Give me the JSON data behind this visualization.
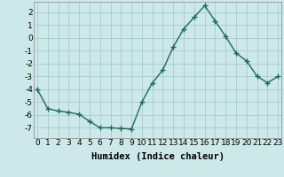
{
  "x": [
    0,
    1,
    2,
    3,
    4,
    5,
    6,
    7,
    8,
    9,
    10,
    11,
    12,
    13,
    14,
    15,
    16,
    17,
    18,
    19,
    20,
    21,
    22,
    23
  ],
  "y": [
    -4,
    -5.5,
    -5.7,
    -5.8,
    -5.95,
    -6.5,
    -7.0,
    -7.0,
    -7.05,
    -7.1,
    -5.0,
    -3.5,
    -2.5,
    -0.7,
    0.7,
    1.6,
    2.5,
    1.3,
    0.1,
    -1.2,
    -1.8,
    -3.0,
    -3.5,
    -3.0
  ],
  "line_color": "#1a6b5a",
  "bg_color": "#cce8e8",
  "grid_color": "#aacccc",
  "xlabel": "Humidex (Indice chaleur)",
  "ylim": [
    -7.8,
    2.8
  ],
  "xlim": [
    -0.3,
    23.3
  ],
  "yticks": [
    -7,
    -6,
    -5,
    -4,
    -3,
    -2,
    -1,
    0,
    1,
    2
  ],
  "xticks": [
    0,
    1,
    2,
    3,
    4,
    5,
    6,
    7,
    8,
    9,
    10,
    11,
    12,
    13,
    14,
    15,
    16,
    17,
    18,
    19,
    20,
    21,
    22,
    23
  ],
  "tick_fontsize": 6.5,
  "xlabel_fontsize": 7.5,
  "marker": "+",
  "marker_size": 4,
  "linewidth": 1.0
}
